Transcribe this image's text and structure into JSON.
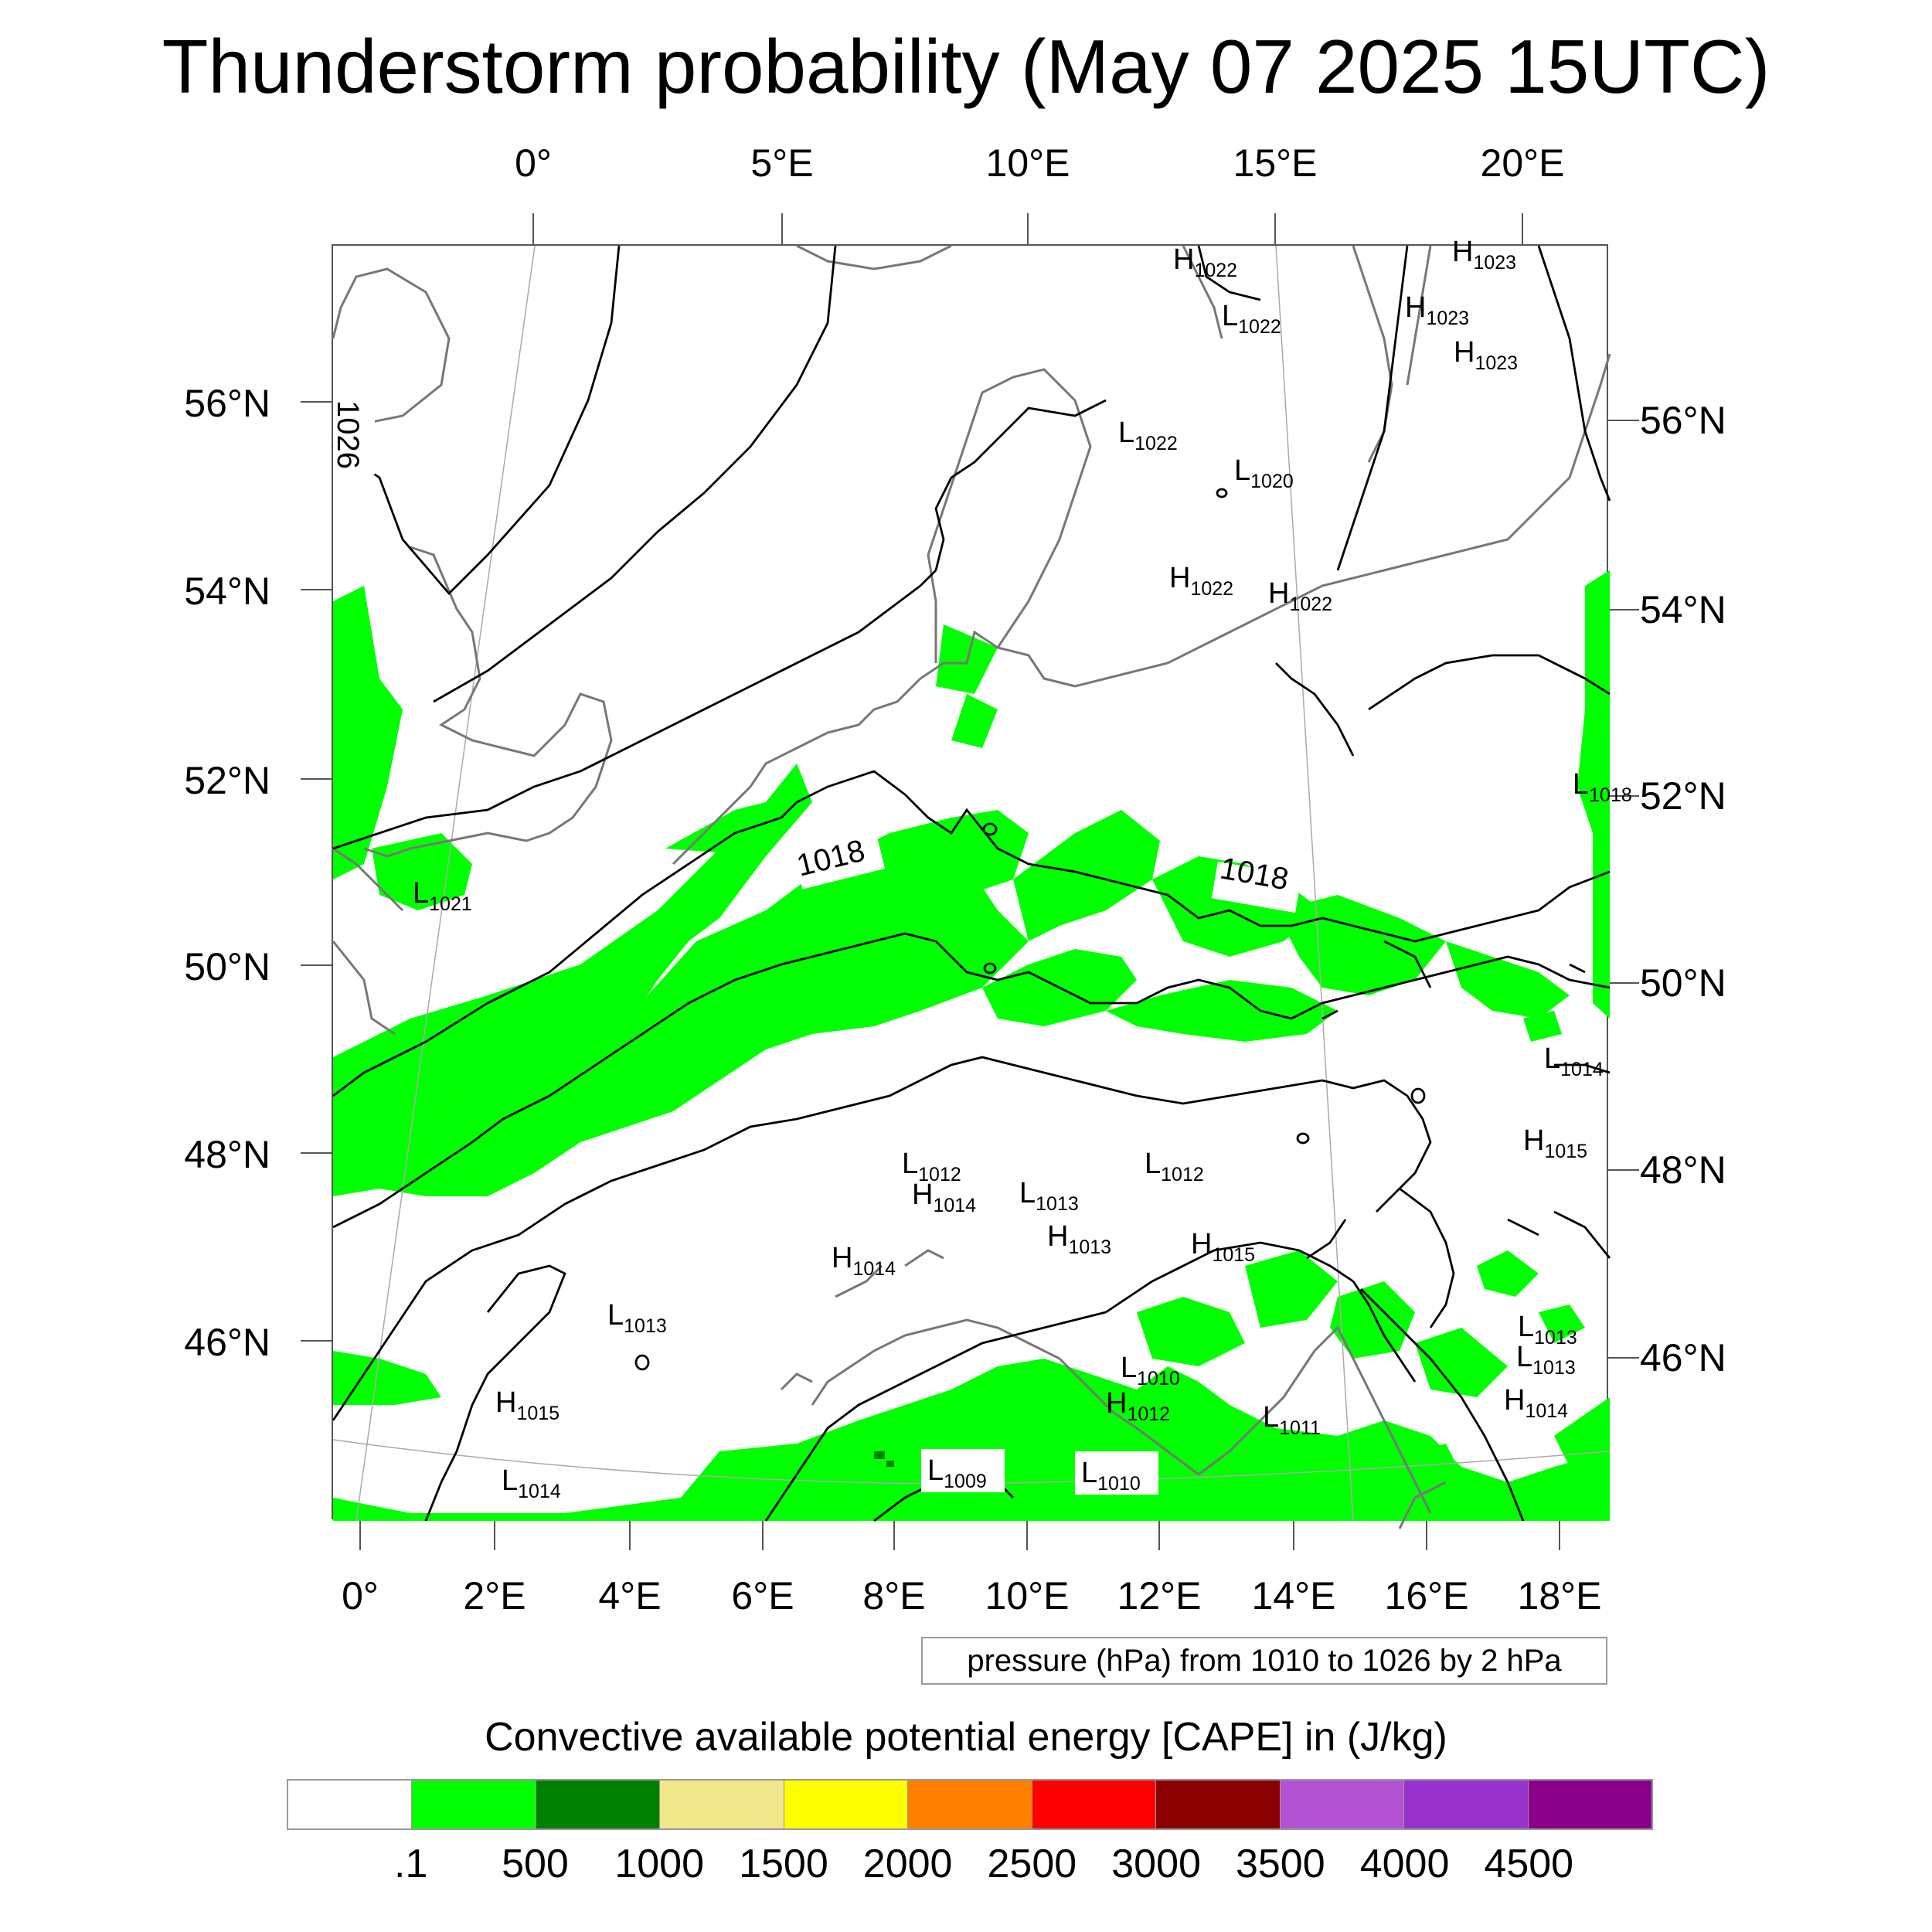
{
  "title": "Thunderstorm probability (May 07 2025 15UTC)",
  "top_axis_labels": [
    "0°",
    "5°E",
    "10°E",
    "15°E",
    "20°E"
  ],
  "bottom_axis_labels": [
    "0°",
    "2°E",
    "4°E",
    "6°E",
    "8°E",
    "10°E",
    "12°E",
    "14°E",
    "16°E",
    "18°E"
  ],
  "left_axis_labels": [
    "56°N",
    "54°N",
    "52°N",
    "50°N",
    "48°N",
    "46°N"
  ],
  "right_axis_labels": [
    "56°N",
    "54°N",
    "52°N",
    "50°N",
    "48°N",
    "46°N"
  ],
  "contour_info": "pressure (hPa) from 1010 to 1026 by 2 hPa",
  "contour_line_labels": [
    "1026",
    "1018",
    "1018"
  ],
  "pressure_centers": [
    {
      "type": "H",
      "value": "1022"
    },
    {
      "type": "H",
      "value": "1023"
    },
    {
      "type": "H",
      "value": "1023"
    },
    {
      "type": "L",
      "value": "1022"
    },
    {
      "type": "H",
      "value": "1023"
    },
    {
      "type": "L",
      "value": "1022"
    },
    {
      "type": "L",
      "value": "1020"
    },
    {
      "type": "H",
      "value": "1022"
    },
    {
      "type": "H",
      "value": "1022"
    },
    {
      "type": "L",
      "value": "1018"
    },
    {
      "type": "L",
      "value": "1021"
    },
    {
      "type": "L",
      "value": "1014"
    },
    {
      "type": "H",
      "value": "1015"
    },
    {
      "type": "L",
      "value": "1013"
    },
    {
      "type": "L",
      "value": "1012"
    },
    {
      "type": "L",
      "value": "1012"
    },
    {
      "type": "H",
      "value": "1014"
    },
    {
      "type": "L",
      "value": "1013"
    },
    {
      "type": "H",
      "value": "1013"
    },
    {
      "type": "H",
      "value": "1014"
    },
    {
      "type": "H",
      "value": "1015"
    },
    {
      "type": "L",
      "value": "1013"
    },
    {
      "type": "L",
      "value": "1013"
    },
    {
      "type": "H",
      "value": "1015"
    },
    {
      "type": "L",
      "value": "1010"
    },
    {
      "type": "H",
      "value": "1012"
    },
    {
      "type": "L",
      "value": "1011"
    },
    {
      "type": "H",
      "value": "1014"
    },
    {
      "type": "L",
      "value": "1009"
    },
    {
      "type": "L",
      "value": "1010"
    },
    {
      "type": "L",
      "value": "1014"
    }
  ],
  "colorbar": {
    "title": "Convective available potential energy [CAPE] in (J/kg)",
    "colors": [
      "#ffffff",
      "#00ff00",
      "#008000",
      "#f0e68c",
      "#ffff00",
      "#ff8000",
      "#ff0000",
      "#8b0000",
      "#b452d4",
      "#9932cc",
      "#8b008b"
    ],
    "labels": [
      ".1",
      "500",
      "1000",
      "1500",
      "2000",
      "2500",
      "3000",
      "3500",
      "4000",
      "4500"
    ]
  }
}
